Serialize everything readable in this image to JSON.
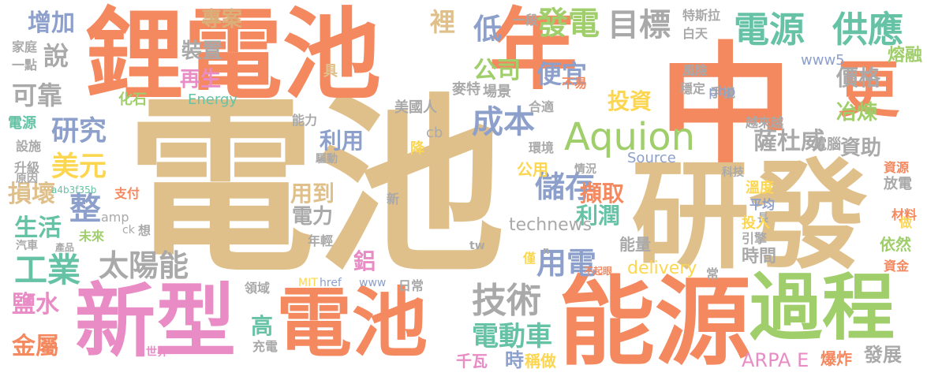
{
  "palette": [
    "#e0c08a",
    "#f4885e",
    "#e98bc5",
    "#9fce6a",
    "#8da0cb",
    "#fdd64f",
    "#a9a9a9",
    "#66c2a5",
    "#d9b07a"
  ],
  "words": [
    {
      "text": "電池",
      "color": "#e0c08a"
    },
    {
      "text": "中",
      "color": "#f4885e"
    },
    {
      "text": "年",
      "color": "#f4885e"
    },
    {
      "text": "研發",
      "color": "#e0c08a"
    },
    {
      "text": "鋰電池",
      "color": "#f4885e"
    },
    {
      "text": "能源",
      "color": "#f4885e"
    },
    {
      "text": "新型",
      "color": "#e98bc5"
    },
    {
      "text": "電池",
      "color": "#f4885e"
    },
    {
      "text": "過程",
      "color": "#9fce6a"
    },
    {
      "text": "更",
      "color": "#f4885e"
    },
    {
      "text": "Aquion",
      "color": "#9fce6a"
    },
    {
      "text": "技術",
      "color": "#a9a9a9"
    },
    {
      "text": "電源",
      "color": "#66c2a5"
    },
    {
      "text": "供應",
      "color": "#66c2a5"
    },
    {
      "text": "工業",
      "color": "#66c2a5"
    },
    {
      "text": "太陽能",
      "color": "#a9a9a9"
    },
    {
      "text": "目標",
      "color": "#a9a9a9"
    },
    {
      "text": "發電",
      "color": "#9fce6a"
    },
    {
      "text": "成本",
      "color": "#8da0cb"
    },
    {
      "text": "儲存",
      "color": "#8da0cb"
    },
    {
      "text": "電動車",
      "color": "#66c2a5"
    },
    {
      "text": "用電",
      "color": "#8da0cb"
    },
    {
      "text": "薩杜威",
      "color": "#a9a9a9"
    },
    {
      "text": "美元",
      "color": "#fdd64f"
    },
    {
      "text": "研究",
      "color": "#8da0cb"
    },
    {
      "text": "整",
      "color": "#8da0cb"
    },
    {
      "text": "說",
      "color": "#a9a9a9"
    },
    {
      "text": "增加",
      "color": "#8da0cb"
    },
    {
      "text": "專案",
      "color": "#d9b07a"
    },
    {
      "text": "可靠",
      "color": "#a9a9a9"
    },
    {
      "text": "便宜",
      "color": "#8da0cb"
    },
    {
      "text": "公司",
      "color": "#9fce6a"
    },
    {
      "text": "低",
      "color": "#8da0cb"
    },
    {
      "text": "裡",
      "color": "#e0c08a"
    },
    {
      "text": "再生",
      "color": "#e98bc5"
    },
    {
      "text": "裝置",
      "color": "#a9a9a9"
    },
    {
      "text": "投資",
      "color": "#fdd64f"
    },
    {
      "text": "價格",
      "color": "#a9a9a9"
    },
    {
      "text": "熔融",
      "color": "#9fce6a"
    },
    {
      "text": "冶煉",
      "color": "#9fce6a"
    },
    {
      "text": "資助",
      "color": "#a9a9a9"
    },
    {
      "text": "利用",
      "color": "#8da0cb"
    },
    {
      "text": "擷取",
      "color": "#f4885e"
    },
    {
      "text": "利潤",
      "color": "#66c2a5"
    },
    {
      "text": "用到",
      "color": "#e0c08a"
    },
    {
      "text": "電力",
      "color": "#a9a9a9"
    },
    {
      "text": "生活",
      "color": "#66c2a5"
    },
    {
      "text": "損壞",
      "color": "#e0c08a"
    },
    {
      "text": "鹽水",
      "color": "#e98bc5"
    },
    {
      "text": "金屬",
      "color": "#f4885e"
    },
    {
      "text": "高",
      "color": "#66c2a5"
    },
    {
      "text": "鋁",
      "color": "#e98bc5"
    },
    {
      "text": "technews",
      "color": "#a9a9a9"
    },
    {
      "text": "ARPA E",
      "color": "#e98bc5"
    },
    {
      "text": "發展",
      "color": "#a9a9a9"
    },
    {
      "text": "時",
      "color": "#8da0cb"
    },
    {
      "text": "千瓦",
      "color": "#e98bc5"
    },
    {
      "text": "稱做",
      "color": "#fdd64f"
    },
    {
      "text": "爆炸",
      "color": "#f4885e"
    },
    {
      "text": "delivery",
      "color": "#fdd64f"
    },
    {
      "text": "能量",
      "color": "#a9a9a9"
    },
    {
      "text": "時間",
      "color": "#a9a9a9"
    },
    {
      "text": "依然",
      "color": "#9fce6a"
    },
    {
      "text": "材料",
      "color": "#f4885e"
    },
    {
      "text": "放電",
      "color": "#a9a9a9"
    },
    {
      "text": "溫度",
      "color": "#fdd64f"
    },
    {
      "text": "平均",
      "color": "#8da0cb"
    },
    {
      "text": "科技",
      "color": "#a9a9a9"
    },
    {
      "text": "電腦",
      "color": "#a9a9a9"
    },
    {
      "text": "資源",
      "color": "#f4885e"
    },
    {
      "text": "越來越",
      "color": "#a9a9a9"
    },
    {
      "text": "Source",
      "color": "#8da0cb"
    },
    {
      "text": "情況",
      "color": "#a9a9a9"
    },
    {
      "text": "環境",
      "color": "#a9a9a9"
    },
    {
      "text": "公用",
      "color": "#fdd64f"
    },
    {
      "text": "cb",
      "color": "#a9a9a9"
    },
    {
      "text": "降",
      "color": "#fdd64f"
    },
    {
      "text": "美國人",
      "color": "#a9a9a9"
    },
    {
      "text": "場景",
      "color": "#a9a9a9"
    },
    {
      "text": "麥特",
      "color": "#a9a9a9"
    },
    {
      "text": "合適",
      "color": "#a9a9a9"
    },
    {
      "text": "不易",
      "color": "#f4885e"
    },
    {
      "text": "手機",
      "color": "#a9a9a9"
    },
    {
      "text": "php",
      "color": "#8da0cb"
    },
    {
      "text": "穩定",
      "color": "#a9a9a9"
    },
    {
      "text": "風險",
      "color": "#a9a9a9"
    },
    {
      "text": "特斯拉",
      "color": "#a9a9a9"
    },
    {
      "text": "白天",
      "color": "#a9a9a9"
    },
    {
      "text": "一段",
      "color": "#a9a9a9"
    },
    {
      "text": "www5",
      "color": "#8da0cb"
    },
    {
      "text": "Energy",
      "color": "#66c2a5"
    },
    {
      "text": "化石",
      "color": "#9fce6a"
    },
    {
      "text": "能力",
      "color": "#a9a9a9"
    },
    {
      "text": "具",
      "color": "#e0c08a"
    },
    {
      "text": "家庭",
      "color": "#a9a9a9"
    },
    {
      "text": "一點",
      "color": "#a9a9a9"
    },
    {
      "text": "電源",
      "color": "#66c2a5"
    },
    {
      "text": "設施",
      "color": "#a9a9a9"
    },
    {
      "text": "升級",
      "color": "#a9a9a9"
    },
    {
      "text": "原因",
      "color": "#a9a9a9"
    },
    {
      "text": "a4b3f35b",
      "color": "#66c2a5"
    },
    {
      "text": "支付",
      "color": "#f4885e"
    },
    {
      "text": "amp",
      "color": "#a9a9a9"
    },
    {
      "text": "未來",
      "color": "#9fce6a"
    },
    {
      "text": "ck",
      "color": "#a9a9a9"
    },
    {
      "text": "想",
      "color": "#a9a9a9"
    },
    {
      "text": "年輕",
      "color": "#a9a9a9"
    },
    {
      "text": "汽車",
      "color": "#a9a9a9"
    },
    {
      "text": "產品",
      "color": "#a9a9a9"
    },
    {
      "text": "領域",
      "color": "#a9a9a9"
    },
    {
      "text": "MIT",
      "color": "#fdd64f"
    },
    {
      "text": "href",
      "color": "#8da0cb"
    },
    {
      "text": "www",
      "color": "#8da0cb"
    },
    {
      "text": "日常",
      "color": "#a9a9a9"
    },
    {
      "text": "tw",
      "color": "#a9a9a9"
    },
    {
      "text": "充電",
      "color": "#a9a9a9"
    },
    {
      "text": "世界",
      "color": "#e98bc5"
    },
    {
      "text": "新",
      "color": "#a9a9a9"
    },
    {
      "text": "驅動",
      "color": "#a9a9a9"
    },
    {
      "text": "長",
      "color": "#a9a9a9"
    },
    {
      "text": "做",
      "color": "#fdd64f"
    },
    {
      "text": "投入",
      "color": "#fdd64f"
    },
    {
      "text": "引擎",
      "color": "#a9a9a9"
    },
    {
      "text": "資金",
      "color": "#f4885e"
    },
    {
      "text": "不起眼",
      "color": "#f4885e"
    },
    {
      "text": "僅",
      "color": "#fdd64f"
    },
    {
      "text": "常",
      "color": "#a9a9a9"
    },
    {
      "text": "n",
      "color": "#a9a9a9"
    }
  ]
}
